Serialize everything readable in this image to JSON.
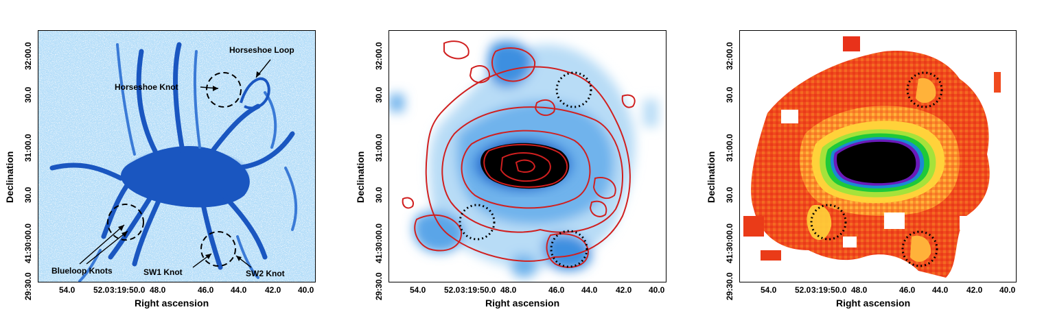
{
  "axes": {
    "xlabel": "Right ascension",
    "ylabel": "Declination",
    "xticks": [
      "54.0",
      "52.0",
      "3:19:50.0",
      "48.0",
      "46.0",
      "44.0",
      "42.0",
      "40.0"
    ],
    "yticks": [
      "32:00.0",
      "30.0",
      "31:00.0",
      "30.0",
      "41:30:00.0",
      "29:30.0"
    ]
  },
  "panels": [
    {
      "id": "halpha",
      "colormap": "blue",
      "annotations": {
        "horseshoe_loop": "Horseshoe Loop",
        "horseshoe_knot": "Horseshoe Knot",
        "blueloop_knots": "Blueloop Knots",
        "sw1_knot": "SW1 Knot",
        "sw2_knot": "SW2 Knot"
      }
    },
    {
      "id": "xray-with-contours",
      "colormap": "blue",
      "contour_color": "#d01f1f"
    },
    {
      "id": "temperature-map",
      "colormap": "heat"
    }
  ]
}
